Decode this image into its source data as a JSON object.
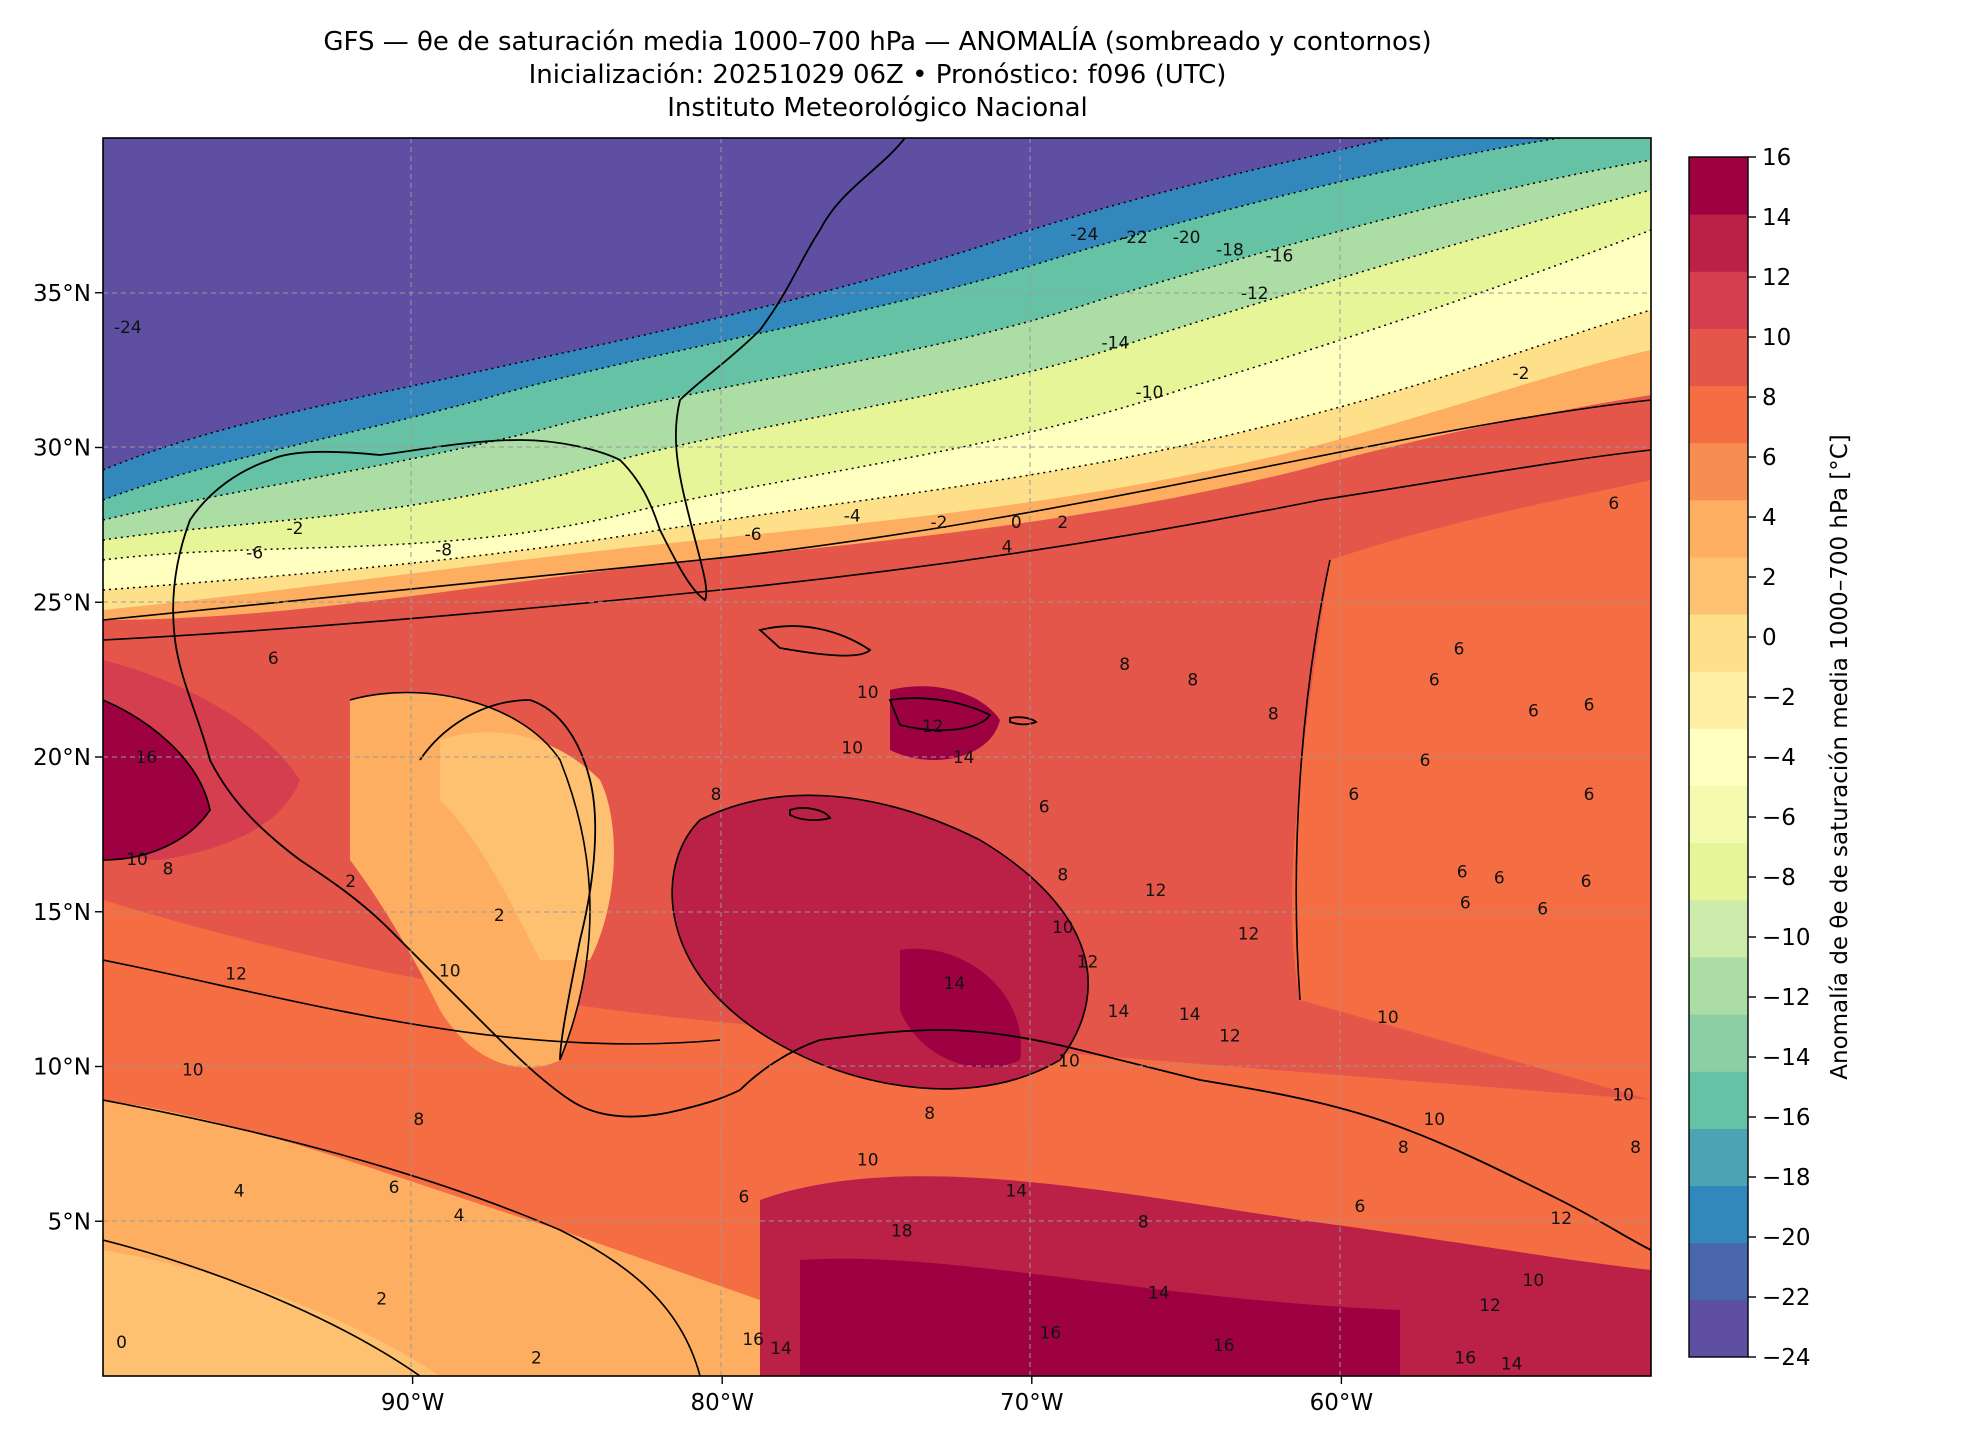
{
  "title": {
    "line1": "GFS — θe de saturación media 1000–700 hPa — ANOMALÍA (sombreado y contornos)",
    "line2": "Inicialización: 20251029 06Z   •   Pronóstico: f096 (UTC)",
    "line3": "Instituto Meteorológico Nacional"
  },
  "map": {
    "lon_range": [
      -100,
      -50
    ],
    "lat_range": [
      0,
      40
    ],
    "lon_ticks": [
      {
        "value": -90,
        "label": "90°W"
      },
      {
        "value": -80,
        "label": "80°W"
      },
      {
        "value": -70,
        "label": "70°W"
      },
      {
        "value": -60,
        "label": "60°W"
      }
    ],
    "lat_ticks": [
      {
        "value": 35,
        "label": "35°N"
      },
      {
        "value": 30,
        "label": "30°N"
      },
      {
        "value": 25,
        "label": "25°N"
      },
      {
        "value": 20,
        "label": "20°N"
      },
      {
        "value": 15,
        "label": "15°N"
      },
      {
        "value": 10,
        "label": "10°N"
      },
      {
        "value": 5,
        "label": "5°N"
      }
    ],
    "gridlines": true
  },
  "colorbar": {
    "label": "Anomalía de θe de saturación media 1000–700 hPa [°C]",
    "tick_labels": [
      "16",
      "14",
      "12",
      "10",
      "8",
      "6",
      "4",
      "2",
      "0",
      "−2",
      "−4",
      "−6",
      "−8",
      "−10",
      "−12",
      "−14",
      "−16",
      "−18",
      "−20",
      "−22",
      "−24"
    ],
    "levels": [
      -24,
      -22,
      -20,
      -18,
      -16,
      -14,
      -12,
      -10,
      -8,
      -6,
      -4,
      -2,
      0,
      2,
      4,
      6,
      8,
      10,
      12,
      14,
      16
    ],
    "colors": [
      "#5e4fa2",
      "#4a66ad",
      "#3288bd",
      "#4ba4b1",
      "#66c2a5",
      "#8ccfa4",
      "#abdda4",
      "#cdebaa",
      "#e6f598",
      "#f4faae",
      "#ffffbf",
      "#fff0a6",
      "#fee08b",
      "#fdc171",
      "#fdae61",
      "#f88d52",
      "#f46d43",
      "#e45649",
      "#d53e4f",
      "#bb2047",
      "#9e0142"
    ]
  },
  "contour_labels": [
    {
      "text": "-24",
      "lon": -99.2,
      "lat": 33.9
    },
    {
      "text": "-24",
      "lon": -68.3,
      "lat": 36.9
    },
    {
      "text": "-22",
      "lon": -66.7,
      "lat": 36.8
    },
    {
      "text": "-20",
      "lon": -65.0,
      "lat": 36.8
    },
    {
      "text": "-18",
      "lon": -63.6,
      "lat": 36.4
    },
    {
      "text": "-16",
      "lon": -62.0,
      "lat": 36.2
    },
    {
      "text": "-12",
      "lon": -62.8,
      "lat": 35.0
    },
    {
      "text": "-14",
      "lon": -67.3,
      "lat": 33.4
    },
    {
      "text": "-10",
      "lon": -66.2,
      "lat": 31.8
    },
    {
      "text": "-2",
      "lon": -54.2,
      "lat": 32.4
    },
    {
      "text": "-8",
      "lon": -89.0,
      "lat": 26.7
    },
    {
      "text": "-6",
      "lon": -79.0,
      "lat": 27.2
    },
    {
      "text": "-4",
      "lon": -75.8,
      "lat": 27.8
    },
    {
      "text": "-2",
      "lon": -73.0,
      "lat": 27.6
    },
    {
      "text": "0",
      "lon": -70.5,
      "lat": 27.6
    },
    {
      "text": "2",
      "lon": -69.0,
      "lat": 27.6
    },
    {
      "text": "4",
      "lon": -70.8,
      "lat": 26.8
    },
    {
      "text": "-6",
      "lon": -95.1,
      "lat": 26.6
    },
    {
      "text": "-2",
      "lon": -93.8,
      "lat": 27.4
    },
    {
      "text": "6",
      "lon": -94.5,
      "lat": 23.2
    },
    {
      "text": "8",
      "lon": -67.0,
      "lat": 23.0
    },
    {
      "text": "8",
      "lon": -64.8,
      "lat": 22.5
    },
    {
      "text": "8",
      "lon": -62.2,
      "lat": 21.4
    },
    {
      "text": "10",
      "lon": -75.3,
      "lat": 22.1
    },
    {
      "text": "12",
      "lon": -73.2,
      "lat": 21.0
    },
    {
      "text": "14",
      "lon": -72.2,
      "lat": 20.0
    },
    {
      "text": "10",
      "lon": -75.8,
      "lat": 20.3
    },
    {
      "text": "8",
      "lon": -80.2,
      "lat": 18.8
    },
    {
      "text": "6",
      "lon": -69.6,
      "lat": 18.4
    },
    {
      "text": "8",
      "lon": -69.0,
      "lat": 16.2
    },
    {
      "text": "12",
      "lon": -66.0,
      "lat": 15.7
    },
    {
      "text": "10",
      "lon": -69.0,
      "lat": 14.5
    },
    {
      "text": "12",
      "lon": -68.2,
      "lat": 13.4
    },
    {
      "text": "12",
      "lon": -63.0,
      "lat": 14.3
    },
    {
      "text": "14",
      "lon": -72.5,
      "lat": 12.7
    },
    {
      "text": "14",
      "lon": -67.2,
      "lat": 11.8
    },
    {
      "text": "14",
      "lon": -64.9,
      "lat": 11.7
    },
    {
      "text": "12",
      "lon": -63.6,
      "lat": 11.0
    },
    {
      "text": "10",
      "lon": -68.8,
      "lat": 10.2
    },
    {
      "text": "10",
      "lon": -58.5,
      "lat": 11.6
    },
    {
      "text": "6",
      "lon": -56.2,
      "lat": 23.5
    },
    {
      "text": "6",
      "lon": -57.0,
      "lat": 22.5
    },
    {
      "text": "6",
      "lon": -57.3,
      "lat": 19.9
    },
    {
      "text": "6",
      "lon": -59.6,
      "lat": 18.8
    },
    {
      "text": "6",
      "lon": -56.1,
      "lat": 16.3
    },
    {
      "text": "6",
      "lon": -54.9,
      "lat": 16.1
    },
    {
      "text": "6",
      "lon": -56.0,
      "lat": 15.3
    },
    {
      "text": "6",
      "lon": -53.5,
      "lat": 15.1
    },
    {
      "text": "6",
      "lon": -52.0,
      "lat": 18.8
    },
    {
      "text": "6",
      "lon": -52.1,
      "lat": 16.0
    },
    {
      "text": "6",
      "lon": -52.0,
      "lat": 21.7
    },
    {
      "text": "6",
      "lon": -53.8,
      "lat": 21.5
    },
    {
      "text": "6",
      "lon": -51.2,
      "lat": 28.2
    },
    {
      "text": "10",
      "lon": -98.9,
      "lat": 16.7
    },
    {
      "text": "8",
      "lon": -97.9,
      "lat": 16.4
    },
    {
      "text": "16",
      "lon": -98.6,
      "lat": 20.0
    },
    {
      "text": "12",
      "lon": -95.7,
      "lat": 13.0
    },
    {
      "text": "10",
      "lon": -88.8,
      "lat": 13.1
    },
    {
      "text": "10",
      "lon": -97.1,
      "lat": 9.9
    },
    {
      "text": "8",
      "lon": -89.8,
      "lat": 8.3
    },
    {
      "text": "6",
      "lon": -90.6,
      "lat": 6.1
    },
    {
      "text": "4",
      "lon": -95.6,
      "lat": 6.0
    },
    {
      "text": "4",
      "lon": -88.5,
      "lat": 5.2
    },
    {
      "text": "6",
      "lon": -79.3,
      "lat": 5.8
    },
    {
      "text": "2",
      "lon": -91.0,
      "lat": 2.5
    },
    {
      "text": "2",
      "lon": -86.0,
      "lat": 0.6
    },
    {
      "text": "0",
      "lon": -99.4,
      "lat": 1.1
    },
    {
      "text": "2",
      "lon": -92.0,
      "lat": 16.0
    },
    {
      "text": "2",
      "lon": -87.2,
      "lat": 14.9
    },
    {
      "text": "10",
      "lon": -75.3,
      "lat": 7.0
    },
    {
      "text": "8",
      "lon": -73.3,
      "lat": 8.5
    },
    {
      "text": "14",
      "lon": -70.5,
      "lat": 6.0
    },
    {
      "text": "14",
      "lon": -78.1,
      "lat": 0.9
    },
    {
      "text": "16",
      "lon": -79.0,
      "lat": 1.2
    },
    {
      "text": "18",
      "lon": -74.2,
      "lat": 4.7
    },
    {
      "text": "8",
      "lon": -66.4,
      "lat": 5.0
    },
    {
      "text": "6",
      "lon": -59.4,
      "lat": 5.5
    },
    {
      "text": "8",
      "lon": -58.0,
      "lat": 7.4
    },
    {
      "text": "10",
      "lon": -57.0,
      "lat": 8.3
    },
    {
      "text": "10",
      "lon": -53.8,
      "lat": 3.1
    },
    {
      "text": "12",
      "lon": -52.9,
      "lat": 5.1
    },
    {
      "text": "12",
      "lon": -55.2,
      "lat": 2.3
    },
    {
      "text": "14",
      "lon": -65.9,
      "lat": 2.7
    },
    {
      "text": "16",
      "lon": -69.4,
      "lat": 1.4
    },
    {
      "text": "16",
      "lon": -63.8,
      "lat": 1.0
    },
    {
      "text": "16",
      "lon": -56.0,
      "lat": 0.6
    },
    {
      "text": "14",
      "lon": -54.5,
      "lat": 0.4
    },
    {
      "text": "10",
      "lon": -50.9,
      "lat": 9.1
    },
    {
      "text": "8",
      "lon": -50.5,
      "lat": 7.4
    }
  ]
}
